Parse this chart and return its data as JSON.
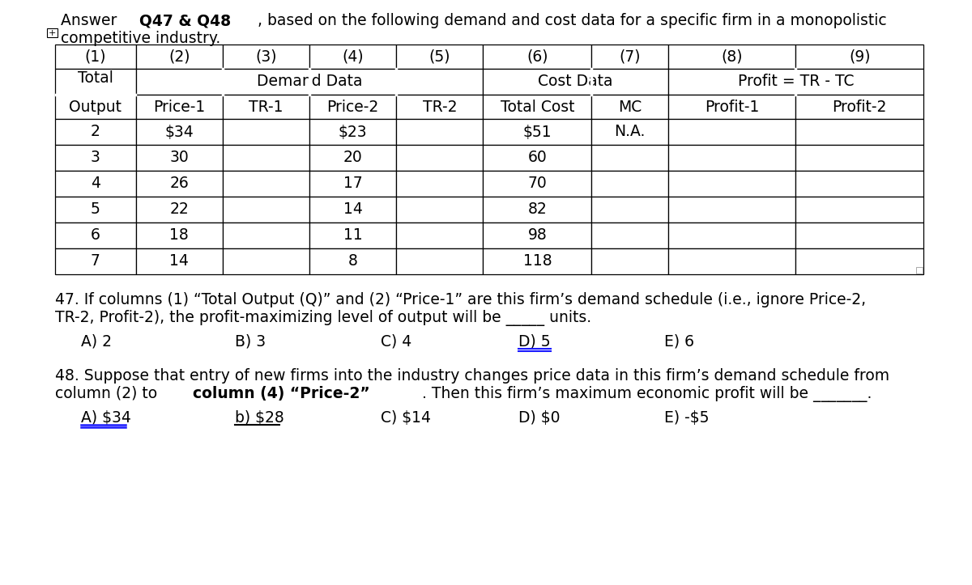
{
  "bg_color": "#ffffff",
  "text_color": "#000000",
  "fs": 13.5,
  "fs_table": 13.5,
  "title_normal1": "Answer ",
  "title_bold": "Q47 & Q48",
  "title_normal2": ", based on the following demand and cost data for a specific firm in a monopolistic",
  "title_line2": "competitive industry.",
  "col_nums": [
    "(1)",
    "(2)",
    "(3)",
    "(4)",
    "(5)",
    "(6)",
    "(7)",
    "(8)",
    "(9)"
  ],
  "demand_data_label": "Demand Data",
  "cost_data_label": "Cost Data",
  "profit_label": "Profit = TR - TC",
  "total_label": "Total",
  "output_label": "Output",
  "row3_headers": [
    "",
    "Price-1",
    "TR-1",
    "Price-2",
    "TR-2",
    "Total Cost",
    "MC",
    "Profit-1",
    "Profit-2"
  ],
  "table_data": [
    [
      "2",
      "$34",
      "",
      "$23",
      "",
      "$51",
      "N.A.",
      "",
      ""
    ],
    [
      "3",
      "30",
      "",
      "20",
      "",
      "60",
      "",
      "",
      ""
    ],
    [
      "4",
      "26",
      "",
      "17",
      "",
      "70",
      "",
      "",
      ""
    ],
    [
      "5",
      "22",
      "",
      "14",
      "",
      "82",
      "",
      "",
      ""
    ],
    [
      "6",
      "18",
      "",
      "11",
      "",
      "98",
      "",
      "",
      ""
    ],
    [
      "7",
      "14",
      "",
      "8",
      "",
      "118",
      "",
      "",
      ""
    ]
  ],
  "q47_line1": "47. If columns (1) “Total Output (Q)” and (2) “Price-1” are this firm’s demand schedule (i.e., ignore Price-2,",
  "q47_line2": "TR-2, Profit-2), the profit-maximizing level of output will be _____ units.",
  "q47_choices": [
    "A) 2",
    "B) 3",
    "C) 4",
    "D) 5",
    "E) 6"
  ],
  "q48_line1": "48. Suppose that entry of new firms into the industry changes price data in this firm’s demand schedule from",
  "q48_line2_pre": "column (2) to ",
  "q48_line2_bold": "column (4) “Price-2”",
  "q48_line2_post": ". Then this firm’s maximum economic profit will be _______.",
  "q48_choices": [
    "A) $34",
    "b) $28",
    "C) $14",
    "D) $0",
    "E) -$5"
  ]
}
